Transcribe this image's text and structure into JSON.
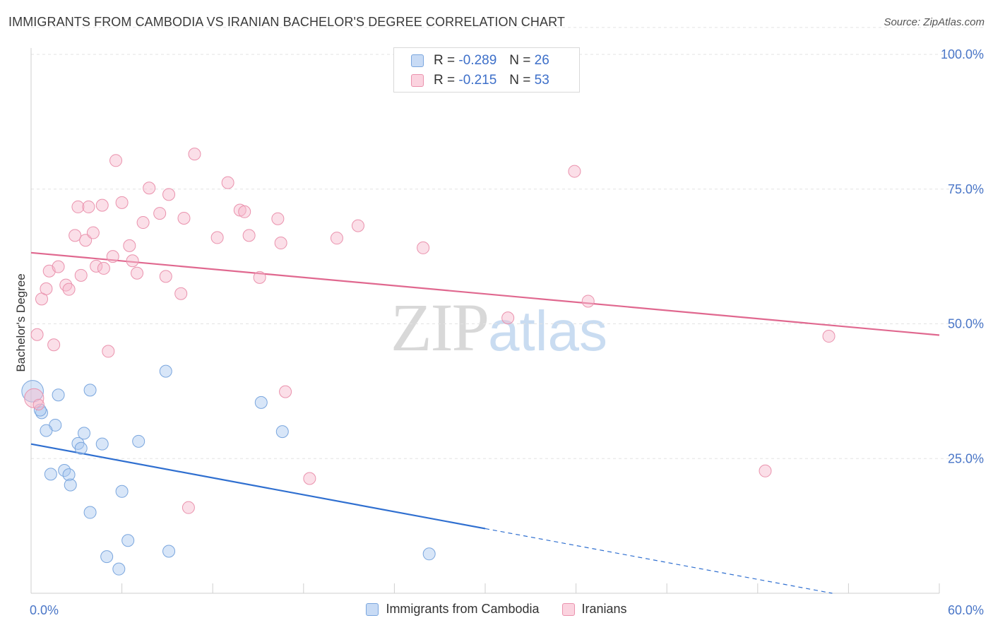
{
  "header": {
    "title": "IMMIGRANTS FROM CAMBODIA VS IRANIAN BACHELOR'S DEGREE CORRELATION CHART",
    "source": "Source: ZipAtlas.com"
  },
  "watermark": {
    "zip": "ZIP",
    "atlas": "atlas"
  },
  "legend": {
    "rows": [
      {
        "r_label": "R = ",
        "r_value": "-0.289",
        "n_label": "N = ",
        "n_value": "26",
        "color": "#a9c8ef"
      },
      {
        "r_label": "R = ",
        "r_value": "-0.215",
        "n_label": "N = ",
        "n_value": "53",
        "color": "#f6b8cc"
      }
    ]
  },
  "bottom_legend": [
    {
      "label": "Immigrants from Cambodia",
      "color": "#a9c8ef"
    },
    {
      "label": "Iranians",
      "color": "#f6b8cc"
    }
  ],
  "chart_data": {
    "type": "scatter",
    "title": "IMMIGRANTS FROM CAMBODIA VS IRANIAN BACHELOR'S DEGREE CORRELATION CHART",
    "xlabel": "",
    "ylabel": "Bachelor's Degree",
    "xlim": [
      0,
      60
    ],
    "ylim": [
      0,
      105
    ],
    "x_tick_labels": [
      "0.0%",
      "60.0%"
    ],
    "y_ticks": [
      25,
      50,
      75,
      100
    ],
    "y_tick_labels": [
      "25.0%",
      "50.0%",
      "75.0%",
      "100.0%"
    ],
    "grid": true,
    "legend_position": "top-center",
    "series": [
      {
        "name": "Immigrants from Cambodia",
        "color": "#a9c8ef",
        "stroke": "#7aa6de",
        "trend_color": "#2f6fd0",
        "trend": {
          "x0": 0,
          "y0": 27.7,
          "x1": 30,
          "y1": 12.0,
          "dash_to_x": 60,
          "dash_to_y": -3.7
        },
        "points": [
          [
            0.1,
            37.5,
            1.8
          ],
          [
            0.7,
            33.5,
            1
          ],
          [
            1.8,
            36.8,
            1
          ],
          [
            1.6,
            31.2,
            1
          ],
          [
            1.0,
            30.2,
            1
          ],
          [
            3.9,
            37.7,
            1
          ],
          [
            8.9,
            41.2,
            1
          ],
          [
            2.2,
            22.8,
            1
          ],
          [
            1.3,
            22.1,
            1
          ],
          [
            2.5,
            22.0,
            1
          ],
          [
            2.6,
            20.1,
            1
          ],
          [
            3.5,
            29.7,
            1
          ],
          [
            3.1,
            27.8,
            1
          ],
          [
            3.3,
            26.9,
            1
          ],
          [
            4.7,
            27.7,
            1
          ],
          [
            7.1,
            28.2,
            1
          ],
          [
            6.0,
            18.9,
            1
          ],
          [
            3.9,
            15.0,
            1
          ],
          [
            6.4,
            9.8,
            1
          ],
          [
            5.0,
            6.8,
            1
          ],
          [
            5.8,
            4.5,
            1
          ],
          [
            9.1,
            7.8,
            1
          ],
          [
            15.2,
            35.4,
            1
          ],
          [
            16.6,
            30.0,
            1
          ],
          [
            26.3,
            7.3,
            1
          ],
          [
            0.6,
            34.0,
            1
          ]
        ]
      },
      {
        "name": "Iranians",
        "color": "#f6b8cc",
        "stroke": "#ea92ad",
        "trend_color": "#e0688f",
        "trend": {
          "x0": 0,
          "y0": 63.2,
          "x1": 60,
          "y1": 47.9
        },
        "points": [
          [
            0.2,
            36.2,
            1.6
          ],
          [
            0.4,
            48.0,
            1
          ],
          [
            0.7,
            54.6,
            1
          ],
          [
            1.0,
            56.5,
            1
          ],
          [
            1.2,
            59.8,
            1
          ],
          [
            1.5,
            46.1,
            1
          ],
          [
            1.8,
            60.6,
            1
          ],
          [
            2.3,
            57.2,
            1
          ],
          [
            2.5,
            56.4,
            1
          ],
          [
            2.9,
            66.4,
            1
          ],
          [
            3.1,
            71.7,
            1
          ],
          [
            3.3,
            59.0,
            1
          ],
          [
            3.6,
            65.5,
            1
          ],
          [
            3.8,
            71.7,
            1
          ],
          [
            4.1,
            66.9,
            1
          ],
          [
            4.3,
            60.7,
            1
          ],
          [
            4.7,
            72.0,
            1
          ],
          [
            4.8,
            60.3,
            1
          ],
          [
            5.1,
            44.9,
            1
          ],
          [
            5.4,
            62.5,
            1
          ],
          [
            5.6,
            80.3,
            1
          ],
          [
            6.0,
            72.5,
            1
          ],
          [
            6.5,
            64.5,
            1
          ],
          [
            6.7,
            61.7,
            1
          ],
          [
            7.0,
            59.4,
            1
          ],
          [
            7.4,
            68.8,
            1
          ],
          [
            7.8,
            75.2,
            1
          ],
          [
            8.5,
            70.5,
            1
          ],
          [
            8.9,
            58.8,
            1
          ],
          [
            9.1,
            74.0,
            1
          ],
          [
            9.9,
            55.6,
            1
          ],
          [
            10.1,
            69.6,
            1
          ],
          [
            10.4,
            15.9,
            1
          ],
          [
            10.8,
            81.5,
            1
          ],
          [
            12.3,
            66.0,
            1
          ],
          [
            13.0,
            76.2,
            1
          ],
          [
            13.8,
            71.1,
            1
          ],
          [
            14.1,
            70.8,
            1
          ],
          [
            14.4,
            66.4,
            1
          ],
          [
            15.1,
            58.6,
            1
          ],
          [
            16.3,
            69.5,
            1
          ],
          [
            16.5,
            65.0,
            1
          ],
          [
            16.8,
            37.4,
            1
          ],
          [
            18.4,
            21.3,
            1
          ],
          [
            20.2,
            65.9,
            1
          ],
          [
            21.6,
            68.2,
            1
          ],
          [
            25.9,
            64.1,
            1
          ],
          [
            31.5,
            51.1,
            1
          ],
          [
            35.9,
            78.3,
            1
          ],
          [
            36.8,
            54.2,
            1
          ],
          [
            48.5,
            22.7,
            1
          ],
          [
            52.7,
            47.7,
            1
          ],
          [
            0.5,
            35.0,
            0.9
          ]
        ]
      }
    ]
  }
}
